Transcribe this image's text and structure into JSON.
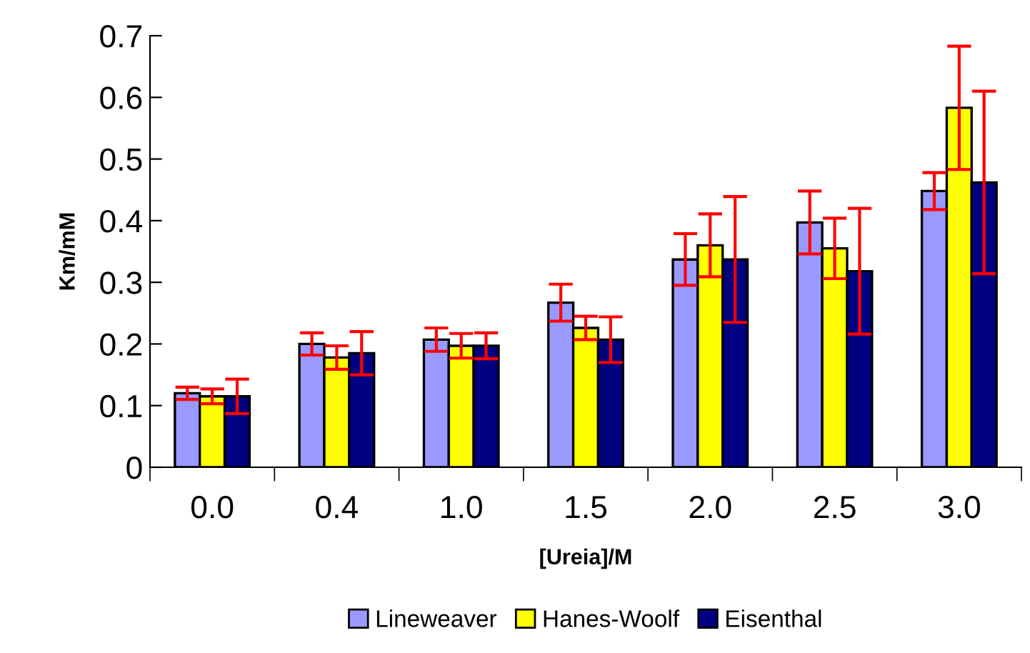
{
  "chart_data": {
    "type": "bar",
    "xlabel": "[Ureia]/M",
    "ylabel": "Km/mM",
    "categories": [
      "0.0",
      "0.4",
      "1.0",
      "1.5",
      "2.0",
      "2.5",
      "3.0"
    ],
    "series": [
      {
        "name": "Lineweaver",
        "color": "#9999ff",
        "values": [
          0.12,
          0.2,
          0.207,
          0.267,
          0.337,
          0.397,
          0.448
        ],
        "errors": [
          0.01,
          0.018,
          0.019,
          0.03,
          0.042,
          0.051,
          0.03
        ]
      },
      {
        "name": "Hanes-Woolf",
        "color": "#ffff00",
        "values": [
          0.115,
          0.178,
          0.197,
          0.226,
          0.36,
          0.355,
          0.583
        ],
        "errors": [
          0.012,
          0.019,
          0.02,
          0.019,
          0.051,
          0.049,
          0.1
        ]
      },
      {
        "name": "Eisenthal",
        "color": "#000080",
        "values": [
          0.115,
          0.185,
          0.197,
          0.207,
          0.337,
          0.318,
          0.462
        ],
        "errors": [
          0.028,
          0.035,
          0.021,
          0.037,
          0.102,
          0.102,
          0.148
        ]
      }
    ],
    "ylim": [
      0,
      0.7
    ],
    "yticks": [
      0,
      0.1,
      0.2,
      0.3,
      0.4,
      0.5,
      0.6,
      0.7
    ],
    "grid": false,
    "legend": "bottom"
  }
}
